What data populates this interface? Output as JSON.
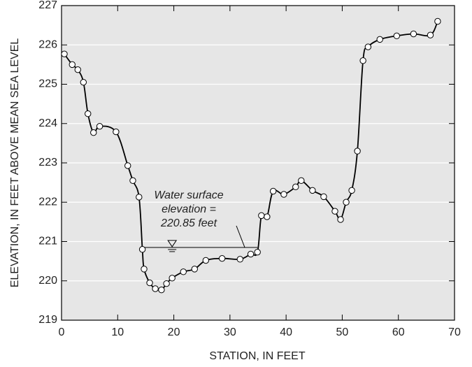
{
  "chart_data": {
    "type": "line",
    "xlabel": "STATION, IN FEET",
    "ylabel": "ELEVATION, IN FEET ABOVE MEAN SEA LEVEL",
    "x": [
      0.5,
      1.9,
      2.9,
      3.9,
      4.7,
      5.7,
      6.8,
      9.7,
      11.8,
      12.7,
      13.8,
      14.4,
      14.7,
      15.7,
      16.7,
      17.8,
      18.7,
      19.7,
      21.7,
      23.7,
      25.7,
      28.6,
      31.8,
      33.7,
      34.9,
      35.6,
      36.6,
      37.7,
      39.6,
      41.7,
      42.7,
      44.7,
      46.7,
      48.7,
      49.7,
      50.7,
      51.7,
      52.7,
      53.7,
      54.6,
      56.7,
      59.7,
      62.7,
      65.7,
      67.0
    ],
    "series": [
      {
        "color": "#000000",
        "values": [
          225.77,
          225.5,
          225.37,
          225.05,
          224.25,
          223.77,
          223.93,
          223.79,
          222.93,
          222.55,
          222.13,
          220.8,
          220.3,
          219.95,
          219.8,
          219.77,
          219.93,
          220.07,
          220.23,
          220.3,
          220.52,
          220.57,
          220.55,
          220.68,
          220.73,
          221.66,
          221.63,
          222.28,
          222.2,
          222.39,
          222.55,
          222.3,
          222.14,
          221.77,
          221.56,
          222.0,
          222.3,
          223.3,
          225.6,
          225.95,
          226.14,
          226.23,
          226.28,
          226.25,
          226.6
        ]
      }
    ],
    "water_surface": 220.85,
    "annotation": [
      "Water surface",
      "elevation =",
      "220.85 feet"
    ],
    "xlim": [
      0,
      70
    ],
    "xticks": [
      0,
      10,
      20,
      30,
      40,
      50,
      60,
      70
    ],
    "ylim": [
      219,
      227
    ],
    "yticks": [
      219,
      220,
      221,
      222,
      223,
      224,
      225,
      226,
      227
    ],
    "grid": true,
    "background": "#e6e6e6"
  }
}
